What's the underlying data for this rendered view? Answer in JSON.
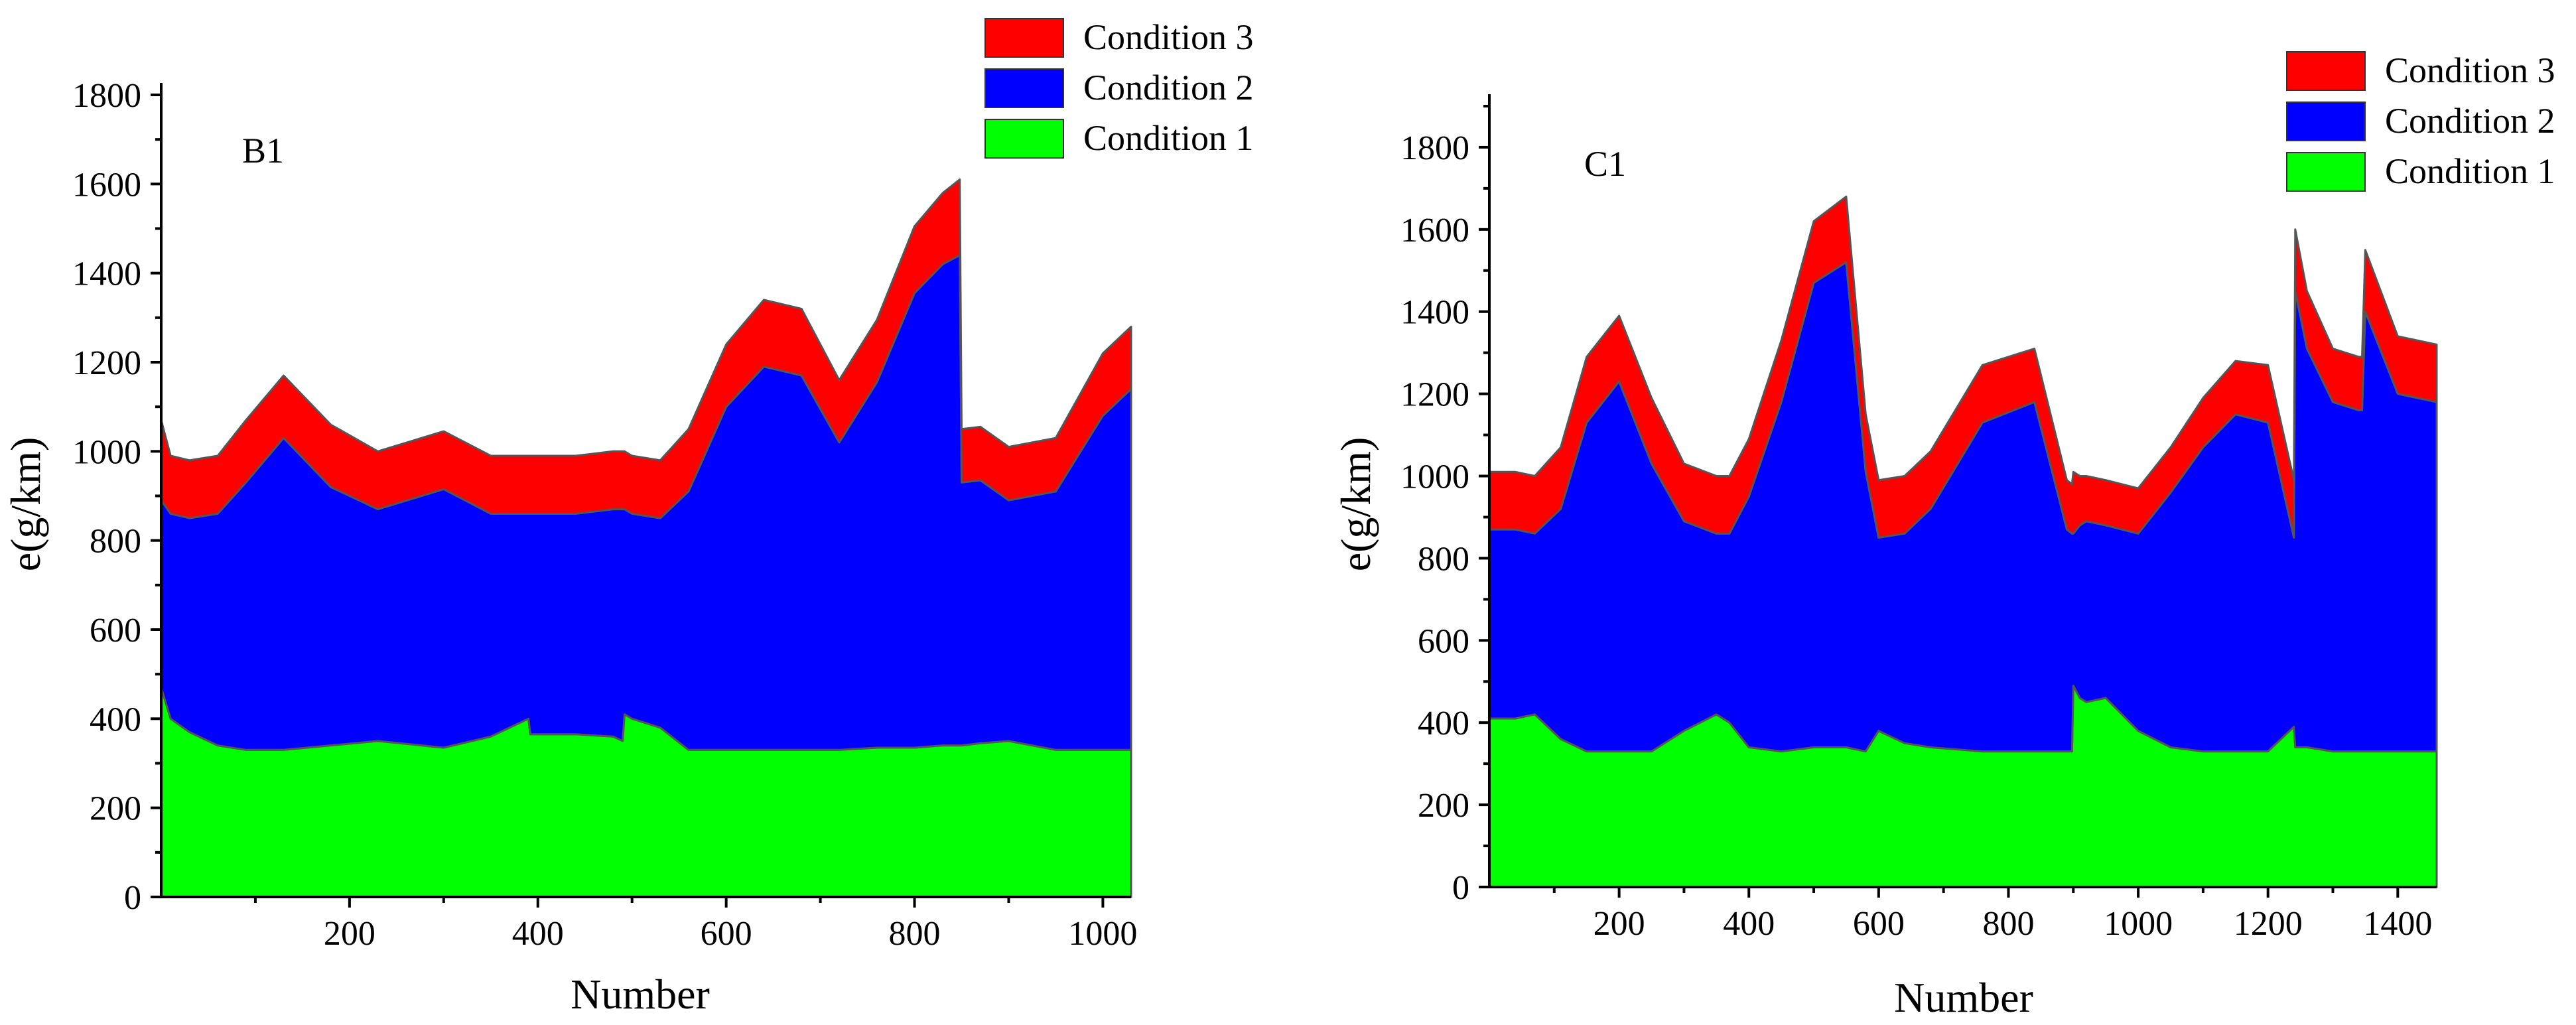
{
  "chart_data": [
    {
      "type": "area",
      "stacked": true,
      "panel_label": "B1",
      "xlabel": "Number",
      "ylabel": "e(g/km)",
      "xlim": [
        0,
        1030
      ],
      "ylim": [
        0,
        1800
      ],
      "xticks": [
        200,
        400,
        600,
        800,
        1000
      ],
      "yticks": [
        0,
        200,
        400,
        600,
        800,
        1000,
        1200,
        1400,
        1600,
        1800
      ],
      "legend_position": "top-right",
      "colors": {
        "Condition 1": "#00ff00",
        "Condition 2": "#0000ff",
        "Condition 3": "#ff0000"
      },
      "x": [
        0,
        10,
        30,
        60,
        90,
        130,
        180,
        230,
        300,
        350,
        390,
        392,
        440,
        480,
        490,
        492,
        500,
        530,
        560,
        600,
        640,
        680,
        720,
        760,
        800,
        830,
        848,
        850,
        870,
        900,
        950,
        1000,
        1030
      ],
      "series": [
        {
          "name": "Condition 1",
          "values": [
            470,
            400,
            370,
            340,
            330,
            330,
            340,
            350,
            335,
            360,
            400,
            365,
            365,
            360,
            350,
            410,
            400,
            380,
            330,
            330,
            330,
            330,
            330,
            335,
            335,
            340,
            340,
            340,
            345,
            350,
            330,
            330,
            330
          ]
        },
        {
          "name": "Condition 2",
          "values": [
            420,
            460,
            480,
            520,
            600,
            700,
            580,
            520,
            580,
            500,
            460,
            495,
            495,
            510,
            520,
            460,
            460,
            470,
            580,
            770,
            860,
            840,
            690,
            820,
            1020,
            1080,
            1100,
            590,
            590,
            540,
            580,
            750,
            810
          ]
        },
        {
          "name": "Condition 3",
          "values": [
            180,
            130,
            130,
            130,
            140,
            140,
            140,
            130,
            130,
            130,
            130,
            130,
            130,
            130,
            130,
            130,
            130,
            130,
            140,
            140,
            150,
            150,
            140,
            140,
            150,
            160,
            170,
            120,
            120,
            120,
            120,
            140,
            140
          ]
        }
      ]
    },
    {
      "type": "area",
      "stacked": true,
      "panel_label": "C1",
      "xlabel": "Number",
      "ylabel": "e(g/km)",
      "xlim": [
        0,
        1460
      ],
      "ylim": [
        0,
        1900
      ],
      "xticks": [
        200,
        400,
        600,
        800,
        1000,
        1200,
        1400
      ],
      "yticks": [
        0,
        200,
        400,
        600,
        800,
        1000,
        1200,
        1400,
        1600,
        1800
      ],
      "legend_position": "top-right",
      "colors": {
        "Condition 1": "#00ff00",
        "Condition 2": "#0000ff",
        "Condition 3": "#ff0000"
      },
      "x": [
        0,
        40,
        70,
        110,
        150,
        200,
        250,
        300,
        350,
        370,
        400,
        450,
        500,
        550,
        580,
        600,
        640,
        680,
        760,
        840,
        890,
        898,
        900,
        910,
        920,
        950,
        1000,
        1050,
        1100,
        1150,
        1200,
        1240,
        1242,
        1260,
        1300,
        1340,
        1345,
        1350,
        1400,
        1460
      ],
      "series": [
        {
          "name": "Condition 1",
          "values": [
            410,
            410,
            420,
            360,
            330,
            330,
            330,
            380,
            420,
            400,
            340,
            330,
            340,
            340,
            330,
            380,
            350,
            340,
            330,
            330,
            330,
            330,
            490,
            460,
            450,
            460,
            380,
            340,
            330,
            330,
            330,
            390,
            340,
            340,
            330,
            330,
            330,
            330,
            330,
            330
          ]
        },
        {
          "name": "Condition 2",
          "values": [
            460,
            460,
            440,
            560,
            800,
            900,
            700,
            510,
            440,
            460,
            610,
            850,
            1130,
            1180,
            680,
            470,
            510,
            580,
            800,
            850,
            540,
            530,
            370,
            420,
            440,
            420,
            480,
            620,
            740,
            820,
            800,
            460,
            1110,
            970,
            850,
            830,
            830,
            1070,
            870,
            850
          ]
        },
        {
          "name": "Condition 3",
          "values": [
            140,
            140,
            140,
            150,
            160,
            160,
            160,
            140,
            140,
            140,
            140,
            150,
            150,
            160,
            140,
            140,
            140,
            140,
            140,
            130,
            120,
            120,
            150,
            120,
            110,
            110,
            110,
            110,
            120,
            130,
            140,
            140,
            150,
            140,
            130,
            130,
            130,
            150,
            140,
            140
          ]
        }
      ]
    }
  ]
}
